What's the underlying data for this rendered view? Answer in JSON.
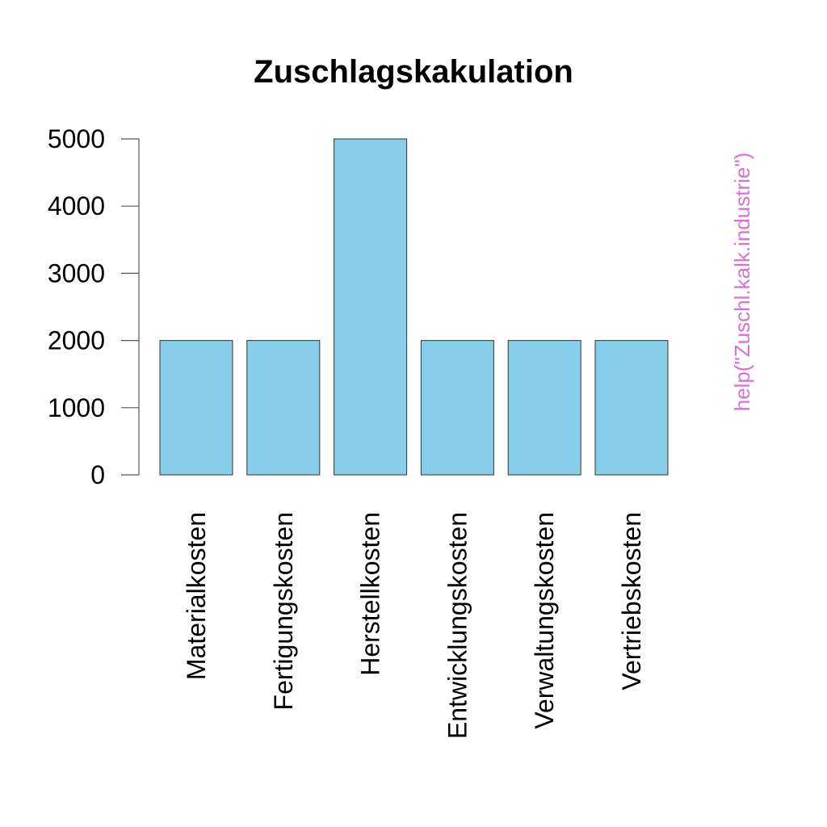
{
  "chart_data": {
    "type": "bar",
    "title": "Zuschlagskakulation",
    "xlabel": "",
    "ylabel": "",
    "categories": [
      "Materialkosten",
      "Fertigungskosten",
      "Herstellkosten",
      "Entwicklungskosten",
      "Verwaltungskosten",
      "Vertriebskosten"
    ],
    "values": [
      2000,
      2000,
      5000,
      2000,
      2000,
      2000
    ],
    "ylim": [
      0,
      5000
    ],
    "yticks": [
      0,
      1000,
      2000,
      3000,
      4000,
      5000
    ],
    "ytick_labels": [
      "0",
      "1000",
      "2000",
      "3000",
      "4000",
      "5000"
    ],
    "grid": false,
    "legend": "none",
    "bar_color": "#87ceeb",
    "bar_border_color": "#333333"
  },
  "side_note": {
    "text": "help(\"Zuschl.kalk.industrie\")",
    "color": "#da70d6"
  }
}
